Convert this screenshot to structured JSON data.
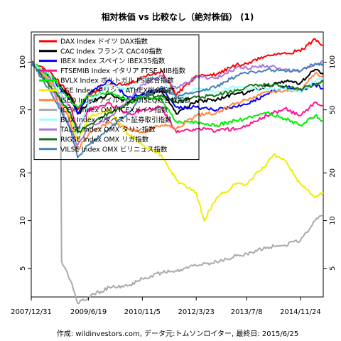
{
  "chart_data": {
    "type": "line",
    "title": "相対株価 vs 比較なし（絶対株価） (1)",
    "scale": "log",
    "y_ticks": [
      5,
      10,
      20,
      50,
      100
    ],
    "y_tick_labels": [
      "5",
      "10",
      "20",
      "50",
      "100"
    ],
    "x_ticks": [
      "2007-12-31",
      "2009-06-19",
      "2010-11-05",
      "2012-03-23",
      "2013-07-08",
      "2014-11-24"
    ],
    "x_tick_labels": [
      "2007/12/31",
      "2009/6/19",
      "2010/11/5",
      "2012/3/23",
      "2013/7/8",
      "2014/11/24"
    ],
    "x_range": [
      "2007-12-31",
      "2015-06-25"
    ],
    "y_range": [
      3.3,
      155
    ],
    "legend_position": "top-left",
    "grid": false,
    "caption": "作成: wildinvestors.com, データ元:トムソンロイター, 最終日: 2015/6/25",
    "series": [
      {
        "name": "DAX Index ドイツ DAX指数",
        "color": "#ff0000",
        "width": 2,
        "x": [
          "2007-12-31",
          "2008-06-30",
          "2008-12-31",
          "2009-03-09",
          "2009-06-19",
          "2009-12-31",
          "2010-06-30",
          "2010-11-05",
          "2011-05-01",
          "2011-09-20",
          "2012-03-23",
          "2012-09-30",
          "2013-03-31",
          "2013-07-08",
          "2014-01-15",
          "2014-06-30",
          "2014-11-24",
          "2015-04-10",
          "2015-06-25"
        ],
        "values": [
          100,
          86,
          62,
          50,
          62,
          72,
          72,
          80,
          88,
          62,
          82,
          84,
          96,
          98,
          110,
          115,
          117,
          140,
          128
        ]
      },
      {
        "name": "CAC Index フランス CAC40指数",
        "color": "#000000",
        "width": 2,
        "x": [
          "2007-12-31",
          "2008-06-30",
          "2008-12-31",
          "2009-03-09",
          "2009-06-19",
          "2009-12-31",
          "2010-06-30",
          "2010-11-05",
          "2011-05-01",
          "2011-09-20",
          "2012-03-23",
          "2012-09-30",
          "2013-03-31",
          "2013-07-08",
          "2014-01-15",
          "2014-06-30",
          "2014-11-24",
          "2015-04-10",
          "2015-06-25"
        ],
        "values": [
          100,
          82,
          60,
          47,
          55,
          63,
          56,
          62,
          66,
          47,
          57,
          58,
          63,
          64,
          71,
          76,
          74,
          90,
          85
        ]
      },
      {
        "name": "IBEX Index スペイン IBEX35指数",
        "color": "#0000ff",
        "width": 2,
        "x": [
          "2007-12-31",
          "2008-06-30",
          "2008-12-31",
          "2009-03-09",
          "2009-06-19",
          "2009-12-31",
          "2010-06-30",
          "2010-11-05",
          "2011-05-01",
          "2011-09-20",
          "2012-03-23",
          "2012-09-30",
          "2013-03-31",
          "2013-07-08",
          "2014-01-15",
          "2014-06-30",
          "2014-11-24",
          "2015-04-10",
          "2015-06-25"
        ],
        "values": [
          100,
          80,
          58,
          47,
          63,
          77,
          60,
          63,
          68,
          52,
          52,
          50,
          52,
          54,
          63,
          70,
          67,
          72,
          68
        ]
      },
      {
        "name": "FTSEMIB Index イタリア FTSE MIB指数",
        "color": "#ff1493",
        "width": 2,
        "x": [
          "2007-12-31",
          "2008-06-30",
          "2008-12-31",
          "2009-03-09",
          "2009-06-19",
          "2009-12-31",
          "2010-06-30",
          "2010-11-05",
          "2011-05-01",
          "2011-09-20",
          "2012-03-23",
          "2012-09-30",
          "2013-03-31",
          "2013-07-08",
          "2014-01-15",
          "2014-06-30",
          "2014-11-24",
          "2015-04-10",
          "2015-06-25"
        ],
        "values": [
          100,
          78,
          52,
          37,
          50,
          55,
          47,
          50,
          52,
          36,
          38,
          37,
          38,
          40,
          46,
          51,
          46,
          56,
          53
        ]
      },
      {
        "name": "BVLX Index ポルトガル PSI総合指数",
        "color": "#00ee00",
        "width": 2,
        "x": [
          "2007-12-31",
          "2008-06-30",
          "2008-12-31",
          "2009-03-09",
          "2009-06-19",
          "2009-12-31",
          "2010-06-30",
          "2010-11-05",
          "2011-05-01",
          "2011-09-20",
          "2012-03-23",
          "2012-09-30",
          "2013-03-31",
          "2013-07-08",
          "2014-01-15",
          "2014-06-30",
          "2014-11-24",
          "2015-04-10",
          "2015-06-25"
        ],
        "values": [
          100,
          82,
          58,
          52,
          62,
          64,
          58,
          60,
          58,
          42,
          42,
          40,
          43,
          44,
          48,
          44,
          40,
          46,
          42
        ]
      },
      {
        "name": "ASE Index ギリシャ ATHEX総合指数",
        "color": "#eeee00",
        "width": 2,
        "x": [
          "2007-12-31",
          "2008-06-30",
          "2008-12-31",
          "2009-03-09",
          "2009-06-19",
          "2009-12-31",
          "2010-06-30",
          "2010-11-05",
          "2011-05-01",
          "2011-09-20",
          "2012-03-23",
          "2012-06-05",
          "2012-09-30",
          "2013-03-31",
          "2013-07-08",
          "2014-01-15",
          "2014-03-15",
          "2014-06-30",
          "2014-11-24",
          "2015-04-10",
          "2015-06-25"
        ],
        "values": [
          100,
          75,
          45,
          32,
          45,
          50,
          35,
          30,
          26,
          18,
          15,
          10,
          14,
          17,
          17,
          23,
          26,
          24,
          17,
          14,
          15
        ]
      },
      {
        "name": "ISEQ Index アイルランド ISEQ総合株指数",
        "color": "#ff8844",
        "width": 2,
        "x": [
          "2007-12-31",
          "2008-06-30",
          "2008-12-31",
          "2009-03-09",
          "2009-06-19",
          "2009-12-31",
          "2010-06-30",
          "2010-11-05",
          "2011-05-01",
          "2011-09-20",
          "2012-03-23",
          "2012-09-30",
          "2013-03-31",
          "2013-07-08",
          "2014-01-15",
          "2014-06-30",
          "2014-11-24",
          "2015-04-10",
          "2015-06-25"
        ],
        "values": [
          100,
          72,
          42,
          28,
          35,
          42,
          38,
          36,
          40,
          38,
          46,
          48,
          55,
          58,
          65,
          66,
          67,
          85,
          80
        ]
      },
      {
        "name": "ICEXI Index OMX ICEXメイン指数",
        "color": "#aaaaaa",
        "width": 2,
        "x": [
          "2007-12-31",
          "2008-06-30",
          "2008-09-30",
          "2008-10-10",
          "2008-12-31",
          "2009-03-09",
          "2009-06-19",
          "2009-12-31",
          "2010-06-30",
          "2010-11-05",
          "2011-05-01",
          "2011-09-20",
          "2012-03-23",
          "2012-09-30",
          "2013-03-31",
          "2013-07-08",
          "2014-01-15",
          "2014-06-30",
          "2014-11-24",
          "2015-04-10",
          "2015-06-25"
        ],
        "values": [
          100,
          75,
          60,
          5.5,
          4.2,
          3.0,
          3.3,
          3.8,
          3.9,
          4.3,
          4.7,
          4.8,
          5.2,
          5.5,
          6.0,
          6.2,
          6.8,
          7.0,
          7.5,
          10.0,
          11.0
        ]
      },
      {
        "name": "BUX Index ブダペスト証券取引指数",
        "color": "#99ffff",
        "width": 2,
        "x": [
          "2007-12-31",
          "2008-06-30",
          "2008-12-31",
          "2009-03-09",
          "2009-06-19",
          "2009-12-31",
          "2010-06-30",
          "2010-11-05",
          "2011-05-01",
          "2011-09-20",
          "2012-03-23",
          "2012-09-30",
          "2013-03-31",
          "2013-07-08",
          "2014-01-15",
          "2014-06-30",
          "2014-11-24",
          "2015-04-10",
          "2015-06-25"
        ],
        "values": [
          100,
          82,
          48,
          35,
          55,
          72,
          66,
          80,
          80,
          58,
          68,
          65,
          70,
          68,
          68,
          68,
          65,
          76,
          78
        ]
      },
      {
        "name": "TALSE Index OMX タリン指数",
        "color": "#aa77dd",
        "width": 2,
        "x": [
          "2007-12-31",
          "2008-06-30",
          "2008-12-31",
          "2009-03-09",
          "2009-06-19",
          "2009-12-31",
          "2010-06-30",
          "2010-11-05",
          "2011-05-01",
          "2011-09-20",
          "2012-03-23",
          "2012-09-30",
          "2013-03-31",
          "2013-07-08",
          "2014-01-15",
          "2014-06-30",
          "2014-11-24",
          "2015-04-10",
          "2015-06-25"
        ],
        "values": [
          100,
          70,
          38,
          30,
          38,
          45,
          58,
          72,
          82,
          68,
          80,
          80,
          92,
          92,
          95,
          90,
          88,
          98,
          100
        ]
      },
      {
        "name": "RIGSE Index OMX リガ指数",
        "color": "#117711",
        "width": 2,
        "x": [
          "2007-12-31",
          "2008-06-30",
          "2008-12-31",
          "2009-03-09",
          "2009-06-19",
          "2009-12-31",
          "2010-06-30",
          "2010-11-05",
          "2011-05-01",
          "2011-09-20",
          "2012-03-23",
          "2012-09-30",
          "2013-03-31",
          "2013-07-08",
          "2014-01-15",
          "2014-06-30",
          "2014-11-24",
          "2015-04-10",
          "2015-06-25"
        ],
        "values": [
          100,
          70,
          48,
          36,
          40,
          48,
          55,
          60,
          62,
          56,
          60,
          62,
          66,
          70,
          72,
          70,
          68,
          72,
          75
        ]
      },
      {
        "name": "VILSE Index OMX ビリニュス指数",
        "color": "#4682b4",
        "width": 2,
        "x": [
          "2007-12-31",
          "2008-06-30",
          "2008-12-31",
          "2009-03-09",
          "2009-06-19",
          "2009-12-31",
          "2010-06-30",
          "2010-11-05",
          "2011-05-01",
          "2011-09-20",
          "2012-03-23",
          "2012-09-30",
          "2013-03-31",
          "2013-07-08",
          "2014-01-15",
          "2014-06-30",
          "2014-11-24",
          "2015-04-10",
          "2015-06-25"
        ],
        "values": [
          100,
          65,
          38,
          25,
          30,
          38,
          48,
          60,
          70,
          60,
          65,
          70,
          82,
          85,
          90,
          88,
          88,
          98,
          98
        ]
      }
    ]
  }
}
